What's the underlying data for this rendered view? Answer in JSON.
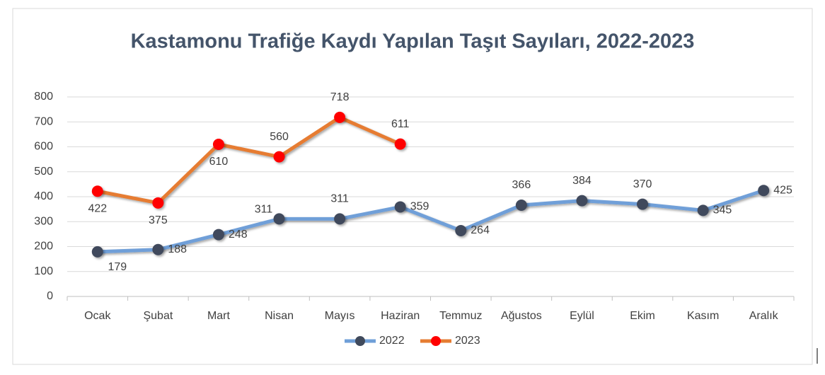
{
  "chart_data": {
    "type": "line",
    "title": "Kastamonu Trafiğe Kaydı Yapılan Taşıt Sayıları, 2022-2023",
    "categories": [
      "Ocak",
      "Şubat",
      "Mart",
      "Nisan",
      "Mayıs",
      "Haziran",
      "Temmuz",
      "Ağustos",
      "Eylül",
      "Ekim",
      "Kasım",
      "Aralık"
    ],
    "series": [
      {
        "name": "2022",
        "color": "#6f9fd8",
        "marker_color": "#404a5c",
        "values": [
          179,
          188,
          248,
          311,
          311,
          359,
          264,
          366,
          384,
          370,
          345,
          425
        ]
      },
      {
        "name": "2023",
        "color": "#e67c32",
        "marker_color": "#ff0000",
        "values": [
          422,
          375,
          610,
          560,
          718,
          611,
          null,
          null,
          null,
          null,
          null,
          null
        ]
      }
    ],
    "ylim": [
      0,
      800
    ],
    "yticks": [
      0,
      100,
      200,
      300,
      400,
      500,
      600,
      700,
      800
    ],
    "grid": true,
    "legend": "bottom"
  }
}
